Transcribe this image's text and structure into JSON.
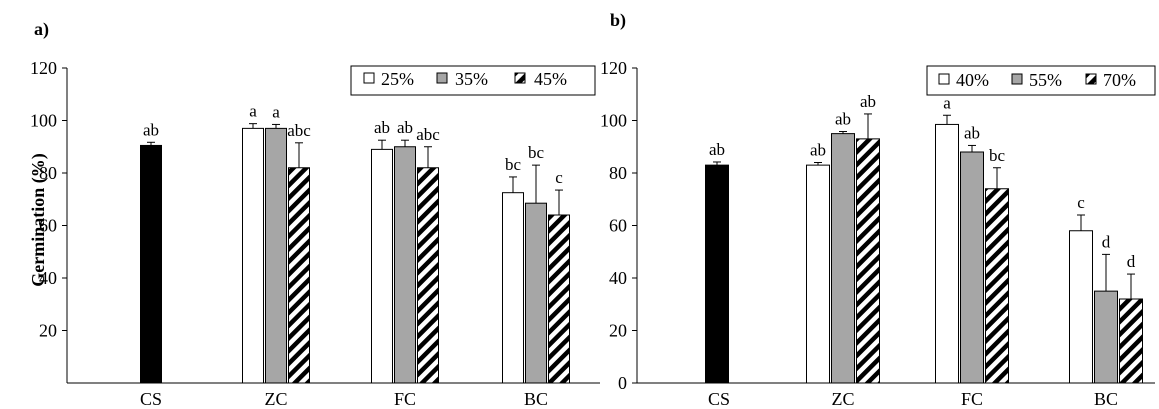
{
  "chart_data": [
    {
      "panel_label": "a)",
      "type": "bar",
      "ylabel": "Germination (%)",
      "ylim": [
        0,
        120
      ],
      "yticks": [
        20,
        40,
        60,
        80,
        100,
        120
      ],
      "categories": [
        "CS",
        "ZC",
        "FC",
        "BC"
      ],
      "legend_position": "top-right",
      "control": {
        "category": "CS",
        "value": 90.5,
        "error": 1.2,
        "letter": "ab",
        "color": "#000000"
      },
      "series": [
        {
          "name": "25%",
          "style": "white",
          "values": [
            null,
            97,
            89,
            72.5
          ],
          "errors": [
            null,
            1.8,
            3.5,
            6.0
          ],
          "letters": [
            null,
            "a",
            "ab",
            "bc"
          ]
        },
        {
          "name": "35%",
          "style": "gray",
          "values": [
            null,
            97,
            90,
            68.5
          ],
          "errors": [
            null,
            1.5,
            2.5,
            14.5
          ],
          "letters": [
            null,
            "a",
            "ab",
            "bc"
          ]
        },
        {
          "name": "45%",
          "style": "diagonal-hatch",
          "values": [
            null,
            82,
            82,
            64
          ],
          "errors": [
            null,
            9.5,
            8.0,
            9.5
          ],
          "letters": [
            null,
            "abc",
            "abc",
            "c"
          ]
        }
      ]
    },
    {
      "panel_label": "b)",
      "type": "bar",
      "ylabel": "",
      "ylim": [
        0,
        120
      ],
      "yticks": [
        0,
        20,
        40,
        60,
        80,
        100,
        120
      ],
      "categories": [
        "CS",
        "ZC",
        "FC",
        "BC"
      ],
      "legend_position": "top-right",
      "control": {
        "category": "CS",
        "value": 83,
        "error": 1.2,
        "letter": "ab",
        "color": "#000000"
      },
      "series": [
        {
          "name": "40%",
          "style": "white",
          "values": [
            null,
            83,
            98.5,
            58
          ],
          "errors": [
            null,
            1.0,
            3.5,
            6.0
          ],
          "letters": [
            null,
            "ab",
            "a",
            "c"
          ]
        },
        {
          "name": "55%",
          "style": "gray",
          "values": [
            null,
            95,
            88,
            35
          ],
          "errors": [
            null,
            0.8,
            2.5,
            14.0
          ],
          "letters": [
            null,
            "ab",
            "ab",
            "d"
          ]
        },
        {
          "name": "70%",
          "style": "diagonal-hatch",
          "values": [
            null,
            93,
            74,
            32
          ],
          "errors": [
            null,
            9.5,
            8.0,
            9.5
          ],
          "letters": [
            null,
            "ab",
            "bc",
            "d"
          ]
        }
      ]
    }
  ],
  "colors": {
    "gray_fill": "#a6a6a6",
    "control_fill": "#000000",
    "white_fill": "#ffffff",
    "hatch_stroke": "#000000"
  }
}
